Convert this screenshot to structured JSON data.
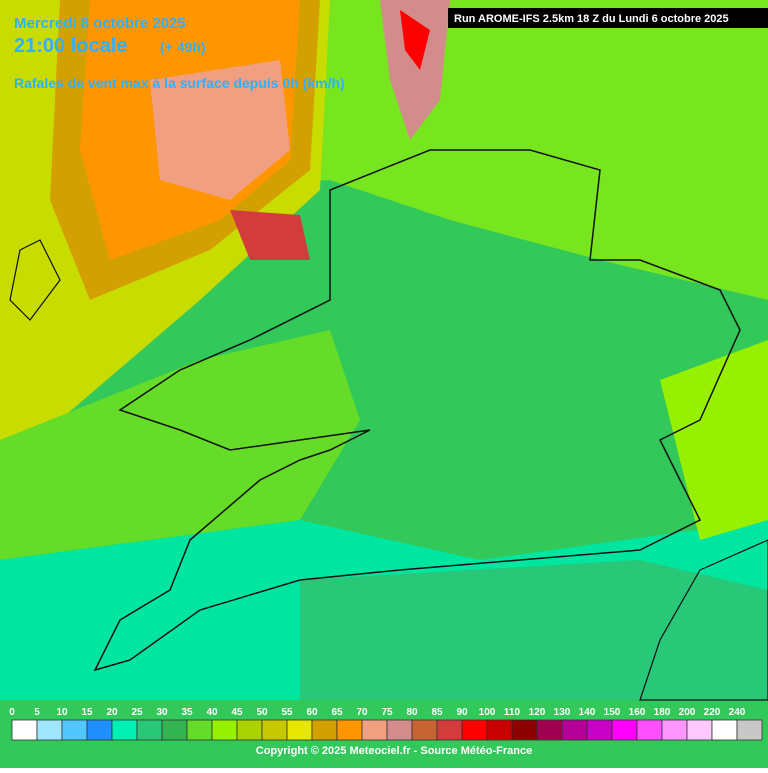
{
  "header": {
    "date": "Mercredi 8 octobre 2025",
    "time": "21:00 locale",
    "lead": "(+ 49h)",
    "subtitle": "Rafales de vent max à la surface depuis 0h (km/h)",
    "run": "Run AROME-IFS 2.5km 18 Z du Lundi 6 octobre 2025"
  },
  "legend": {
    "items": [
      {
        "label": 0,
        "color": "#ffffff"
      },
      {
        "label": 5,
        "color": "#a0e6ff"
      },
      {
        "label": 10,
        "color": "#50c8ff"
      },
      {
        "label": 15,
        "color": "#1e90ff"
      },
      {
        "label": 20,
        "color": "#00f0b4"
      },
      {
        "label": 25,
        "color": "#28c878"
      },
      {
        "label": 30,
        "color": "#32b450"
      },
      {
        "label": 35,
        "color": "#64dc28"
      },
      {
        "label": 40,
        "color": "#96f000"
      },
      {
        "label": 45,
        "color": "#aad200"
      },
      {
        "label": 50,
        "color": "#c8c800"
      },
      {
        "label": 55,
        "color": "#e6e600"
      },
      {
        "label": 60,
        "color": "#d2a000"
      },
      {
        "label": 65,
        "color": "#ff9600"
      },
      {
        "label": 70,
        "color": "#f0a080"
      },
      {
        "label": 75,
        "color": "#d28c8c"
      },
      {
        "label": 80,
        "color": "#c86432"
      },
      {
        "label": 85,
        "color": "#d23c3c"
      },
      {
        "label": 90,
        "color": "#ff0000"
      },
      {
        "label": 100,
        "color": "#c80000"
      },
      {
        "label": 110,
        "color": "#8c0000"
      },
      {
        "label": 120,
        "color": "#a00050"
      },
      {
        "label": 130,
        "color": "#b40096"
      },
      {
        "label": 140,
        "color": "#c800c8"
      },
      {
        "label": 150,
        "color": "#ff00ff"
      },
      {
        "label": 160,
        "color": "#ff50ff"
      },
      {
        "label": 180,
        "color": "#ff96ff"
      },
      {
        "label": 200,
        "color": "#ffc8ff"
      },
      {
        "label": 220,
        "color": "#ffffff"
      },
      {
        "label": 240,
        "color": "#c8c8c8"
      }
    ]
  },
  "footer": {
    "copyright": "Copyright © 2025 Meteociel.fr - Source Météo-France"
  }
}
